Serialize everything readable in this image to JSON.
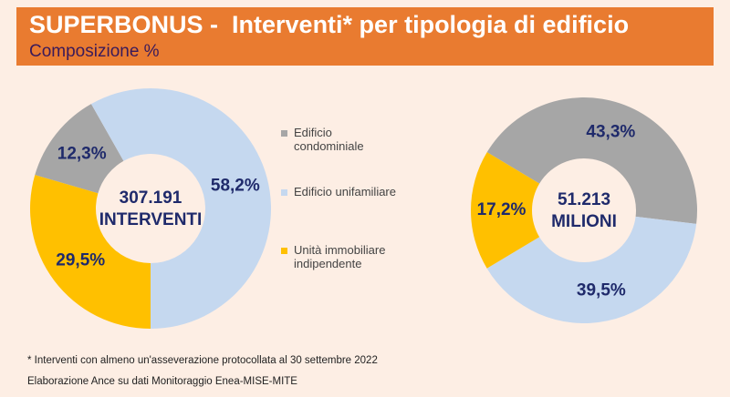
{
  "title": "SUPERBONUS -  Interventi* per tipologia di edificio",
  "subtitle": "Composizione %",
  "notes": [
    "* Interventi con almeno un'asseverazione protocollata al 30 settembre 2022",
    "Elaborazione Ance su dati Monitoraggio Enea-MISE-MITE"
  ],
  "chart_data": [
    {
      "type": "donut",
      "categories": [
        "Edificio condominiale",
        "Edificio unifamiliare",
        "Unità immobiliare indipendente"
      ],
      "values": [
        12.3,
        58.2,
        29.5
      ],
      "value_labels": [
        "12,3%",
        "58,2%",
        "29,5%"
      ],
      "colors": [
        "#a6a6a6",
        "#c5d8ef",
        "#ffc000"
      ],
      "center_label": [
        "307.191",
        "INTERVENTI"
      ]
    },
    {
      "type": "donut",
      "categories": [
        "Edificio condominiale",
        "Edificio unifamiliare",
        "Unità immobiliare indipendente"
      ],
      "values": [
        43.3,
        39.5,
        17.2
      ],
      "value_labels": [
        "43,3%",
        "39,5%",
        "17,2%"
      ],
      "colors": [
        "#a6a6a6",
        "#c5d8ef",
        "#ffc000"
      ],
      "center_label": [
        "51.213",
        "MILIONI"
      ]
    }
  ]
}
